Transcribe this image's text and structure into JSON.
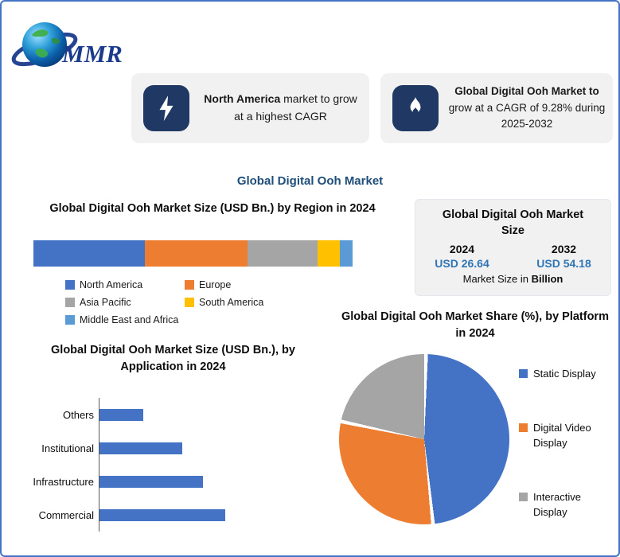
{
  "page": {
    "background": "#FFFFFF",
    "border_color": "#4472C4",
    "accent_navy": "#1F3864",
    "title_blue": "#1F4E79",
    "value_blue": "#2E75B6"
  },
  "logo": {
    "text": "MMR",
    "icon": "globe-icon"
  },
  "callouts": [
    {
      "icon": "lightning-icon",
      "bold": "North America",
      "rest": " market to grow at a highest CAGR"
    },
    {
      "icon": "flame-icon",
      "bold": "Global Digital Ooh Market to",
      "rest": " grow at a CAGR of 9.28% during 2025-2032"
    }
  ],
  "main_title": "Global Digital Ooh Market",
  "chart_data": [
    {
      "id": "region_stacked_bar",
      "type": "bar",
      "stacked": true,
      "orientation": "horizontal",
      "title": "Global Digital Ooh Market Size (USD Bn.) by Region in 2024",
      "categories": [
        "North America",
        "Europe",
        "Asia Pacific",
        "South America",
        "Middle East and Africa"
      ],
      "values": [
        35,
        32,
        22,
        7,
        4
      ],
      "value_note": "segment share of bar in %, axis not labeled",
      "colors": [
        "#4472C4",
        "#ED7D31",
        "#A5A5A5",
        "#FFC000",
        "#5B9BD5"
      ],
      "legend_position": "bottom",
      "grid": false
    },
    {
      "id": "market_size_table",
      "type": "table",
      "title": "Global Digital Ooh Market Size",
      "columns": [
        "2024",
        "2032"
      ],
      "values": [
        "USD 26.64",
        "USD 54.18"
      ],
      "footnote_prefix": "Market Size in ",
      "footnote_bold": "Billion"
    },
    {
      "id": "application_bar",
      "type": "bar",
      "orientation": "horizontal",
      "title": "Global Digital Ooh Market  Size (USD Bn.), by  Application in 2024",
      "categories": [
        "Others",
        "Institutional",
        "Infrastructure",
        "Commercial"
      ],
      "values": [
        35,
        66,
        82,
        100
      ],
      "value_note": "relative bar lengths, axis not labeled",
      "color": "#4472C4",
      "grid": false
    },
    {
      "id": "platform_pie",
      "type": "pie",
      "title": "Global Digital Ooh Market Share (%), by Platform in 2024",
      "categories": [
        "Static Display",
        "Digital Video Display",
        "Interactive Display"
      ],
      "values": [
        48,
        30,
        22
      ],
      "value_note": "estimated from slice angles, %",
      "colors": [
        "#4472C4",
        "#ED7D31",
        "#A5A5A5"
      ],
      "legend_position": "right"
    }
  ]
}
